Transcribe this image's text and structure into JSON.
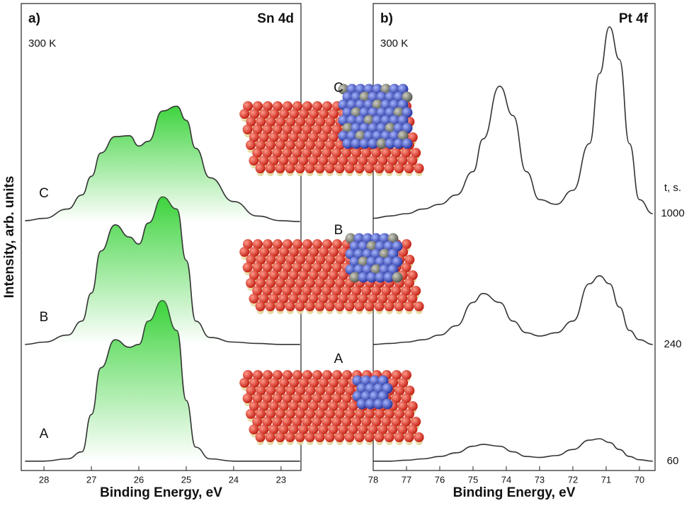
{
  "chart_data": [
    {
      "type": "line",
      "panel_label": "a)",
      "title": "Sn 4d",
      "annotation": "300 K",
      "xlabel": "Binding Energy, eV",
      "ylabel": "Intensity, arb. units",
      "x": [
        28.4,
        28,
        27.5,
        27.2,
        27,
        26.8,
        26.5,
        26.2,
        26,
        25.8,
        25.5,
        25.2,
        25,
        24.8,
        24.5,
        24,
        23.5,
        23,
        22.6
      ],
      "xlim": [
        28.48,
        22.58
      ],
      "xticks": [
        28,
        27,
        26,
        25,
        24,
        23
      ],
      "ylim": [
        0,
        100
      ],
      "fill": true,
      "fill_color": "#3fd43f",
      "series": [
        {
          "name": "A",
          "color": "#333333",
          "values": [
            2,
            2,
            2.5,
            4,
            12,
            22,
            28,
            26.4,
            27,
            32,
            36.4,
            30,
            15,
            5,
            2.5,
            2,
            2,
            2,
            2
          ]
        },
        {
          "name": "B",
          "color": "#333333",
          "values": [
            27,
            27.5,
            29,
            32,
            38,
            47,
            52.6,
            50,
            48.5,
            53,
            58.6,
            56,
            45,
            32,
            28.5,
            27.5,
            27.2,
            27,
            27
          ]
        },
        {
          "name": "C",
          "color": "#333333",
          "values": [
            53.5,
            54,
            56,
            59,
            63,
            68,
            71.5,
            71.7,
            69.5,
            70.5,
            77,
            78,
            75,
            69,
            62.7,
            57.6,
            54.5,
            53.5,
            53.3
          ]
        }
      ]
    },
    {
      "type": "line",
      "panel_label": "b)",
      "title": "Pt 4f",
      "annotation": "300 K",
      "xlabel": "Binding Energy, eV",
      "legend_title": "t, s.",
      "x": [
        78,
        77.5,
        77,
        76.5,
        76,
        75.5,
        75,
        74.7,
        74.2,
        73.8,
        73.4,
        73,
        72.5,
        72,
        71.5,
        71.2,
        70.9,
        70.6,
        70.3,
        70,
        69.6
      ],
      "xlim": [
        78,
        69.53
      ],
      "xticks": [
        78,
        77,
        76,
        75,
        74,
        73,
        72,
        71,
        70
      ],
      "ylim": [
        0,
        100
      ],
      "fill": false,
      "series": [
        {
          "name": "60",
          "color": "#333333",
          "values": [
            2,
            2,
            2.2,
            2.5,
            3,
            3.8,
            5.2,
            5.6,
            5.2,
            4,
            3,
            2.8,
            3.2,
            4.5,
            6.5,
            6.8,
            6,
            4.5,
            3,
            2.3,
            2
          ]
        },
        {
          "name": "240",
          "color": "#333333",
          "values": [
            27,
            27.2,
            27.5,
            28,
            29,
            31,
            36,
            37.9,
            36,
            32,
            29.5,
            28.8,
            29.5,
            32,
            40,
            41.7,
            40,
            35,
            30,
            28,
            27
          ]
        },
        {
          "name": "1000",
          "color": "#333333",
          "values": [
            54,
            54.5,
            55,
            56,
            57,
            59,
            64,
            71,
            82.3,
            76,
            64,
            58,
            57,
            60,
            70,
            85,
            95,
            88,
            70,
            58,
            55
          ]
        }
      ]
    }
  ],
  "structures": {
    "labels": [
      "C",
      "B",
      "A"
    ]
  }
}
